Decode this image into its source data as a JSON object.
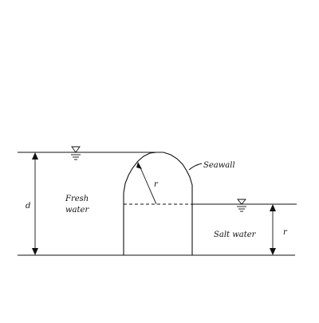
{
  "labels": {
    "seawall": "Seawall",
    "fresh_water_line1": "Fresh",
    "fresh_water_line2": "water",
    "salt_water": "Salt water",
    "depth_symbol": "d",
    "radius_symbol_wall": "r",
    "radius_symbol_right": "r"
  },
  "icons": {
    "fresh_surface": "water-surface-triangle-icon",
    "salt_surface": "water-surface-triangle-icon"
  }
}
